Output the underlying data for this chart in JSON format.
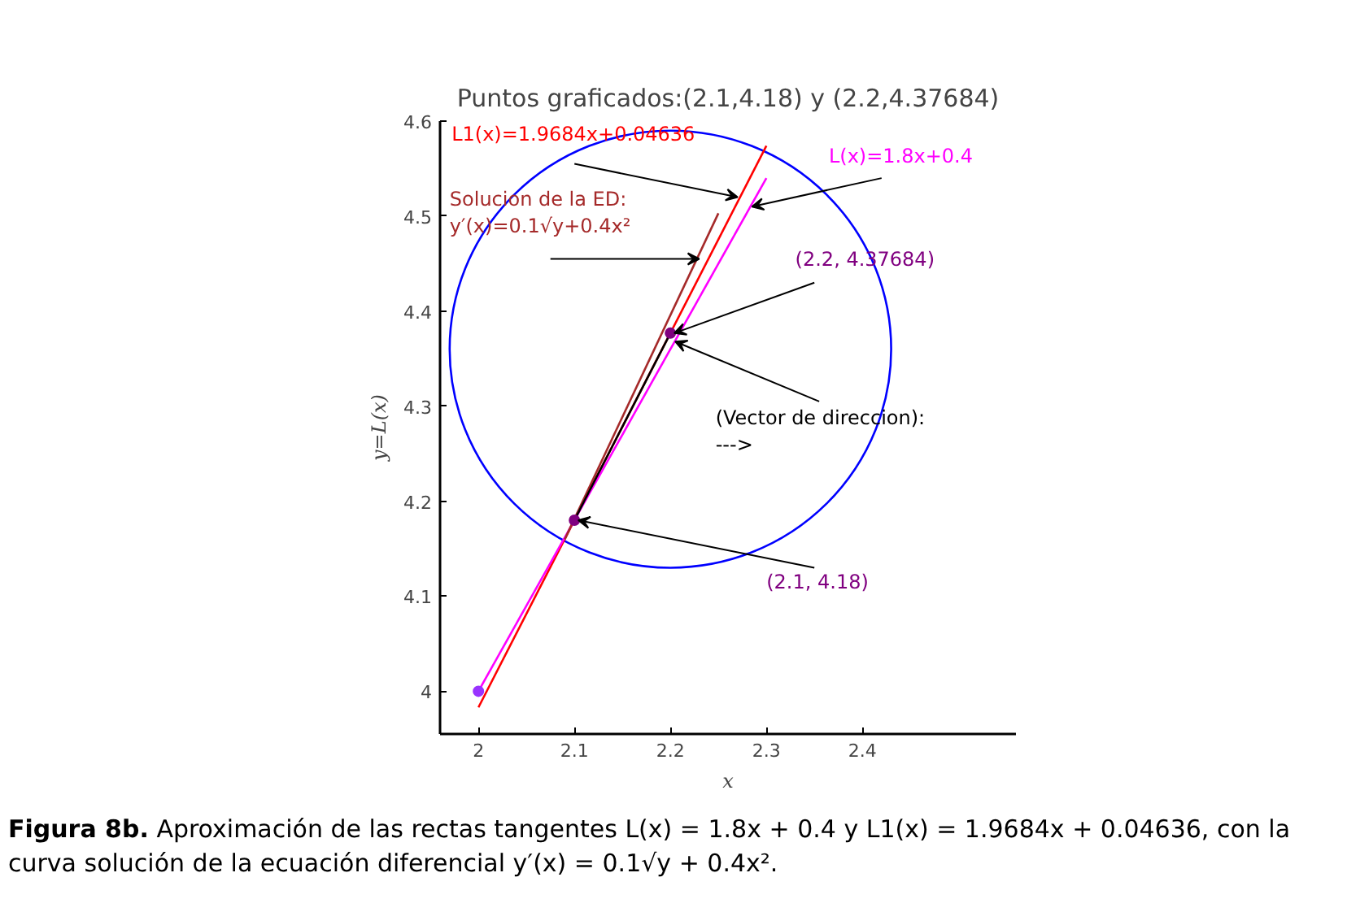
{
  "chart_data": {
    "type": "line",
    "title": "Puntos graficados:(2.1,4.18) y (2.2,4.37684)",
    "xlabel": "x",
    "ylabel": "y=L(x)",
    "xlim": [
      1.96,
      2.56
    ],
    "ylim": [
      3.955,
      4.6
    ],
    "xticks": [
      2,
      2.1,
      2.2,
      2.3,
      2.4
    ],
    "yticks": [
      4,
      4.1,
      4.2,
      4.3,
      4.4,
      4.5,
      4.6
    ],
    "grid": false,
    "line_style": "solid",
    "series": [
      {
        "name": "L1(x)=1.9684x+0.04636",
        "color": "#ff0000",
        "x": [
          2.0,
          2.3
        ],
        "values": [
          3.983,
          4.574
        ]
      },
      {
        "name": "L(x)=1.8x+0.4",
        "color": "#ff00ff",
        "x": [
          2.0,
          2.3
        ],
        "values": [
          4.0,
          4.54
        ]
      },
      {
        "name": "Solucion de la ED:\ny′(x)=0.1√y+0.4x²",
        "color": "#a52a2a",
        "x": [
          2.09,
          2.25
        ],
        "values": [
          4.16,
          4.503
        ]
      },
      {
        "name": "(Vector de direccion):\n--->",
        "color": "#000000",
        "x": [
          2.1,
          2.2
        ],
        "values": [
          4.18,
          4.37684
        ]
      },
      {
        "type": "scatter",
        "marker": "circle",
        "x": [
          2.0,
          2.1,
          2.2
        ],
        "values": [
          4.0,
          4.18,
          4.37684
        ],
        "colors": [
          "#9933ff",
          "#800080",
          "#800080"
        ]
      }
    ],
    "annotations": [
      {
        "text": "(2.2, 4.37684)",
        "x": 2.2,
        "y": 4.37684
      },
      {
        "text": "(2.1, 4.18)",
        "x": 2.1,
        "y": 4.18
      },
      "Figura 8b.",
      "Aproximación de las rectas tangentes L(x) = 1.8x + 0.4  y  L1(x) = 1.9684x + 0.04636, con la curva solución de la ecuación diferencial y′(x) = 0.1√y + 0.4x²."
    ]
  }
}
